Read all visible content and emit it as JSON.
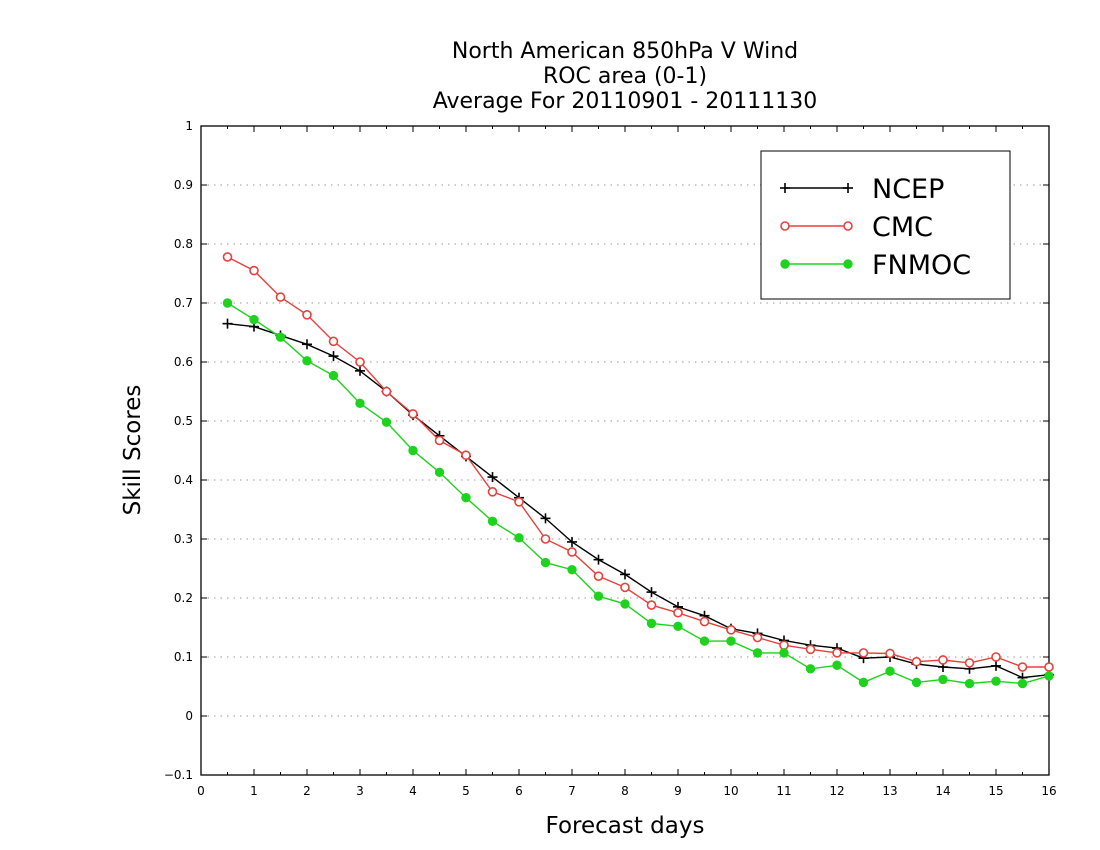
{
  "chart_data": {
    "type": "line",
    "title": [
      "North American 850hPa V Wind",
      "ROC area (0-1)",
      "Average For 20110901 - 20111130"
    ],
    "xlabel": "Forecast days",
    "ylabel": "Skill Scores",
    "xlim": [
      0,
      16
    ],
    "ylim": [
      -0.1,
      1
    ],
    "x_ticks": [
      "0",
      "1",
      "2",
      "3",
      "4",
      "5",
      "6",
      "7",
      "8",
      "9",
      "10",
      "11",
      "12",
      "13",
      "14",
      "15",
      "16"
    ],
    "y_ticks": [
      "−0.1",
      "0",
      "0.1",
      "0.2",
      "0.3",
      "0.4",
      "0.5",
      "0.6",
      "0.7",
      "0.8",
      "0.9",
      "1"
    ],
    "grid": "horizontal dotted",
    "legend_position": "top-right",
    "x": [
      0.5,
      1,
      1.5,
      2,
      2.5,
      3,
      3.5,
      4,
      4.5,
      5,
      5.5,
      6,
      6.5,
      7,
      7.5,
      8,
      8.5,
      9,
      9.5,
      10,
      10.5,
      11,
      11.5,
      12,
      12.5,
      13,
      13.5,
      14,
      14.5,
      15,
      15.5,
      16
    ],
    "series": [
      {
        "name": "NCEP",
        "color": "#000000",
        "marker": "plus",
        "values": [
          0.665,
          0.66,
          0.645,
          0.63,
          0.61,
          0.585,
          0.55,
          0.51,
          0.475,
          0.44,
          0.405,
          0.37,
          0.335,
          0.295,
          0.265,
          0.24,
          0.21,
          0.185,
          0.17,
          0.148,
          0.14,
          0.128,
          0.12,
          0.115,
          0.098,
          0.1,
          0.088,
          0.083,
          0.08,
          0.085,
          0.065,
          0.07
        ]
      },
      {
        "name": "CMC",
        "color": "#e8403c",
        "marker": "open-circle",
        "values": [
          0.778,
          0.755,
          0.71,
          0.68,
          0.635,
          0.6,
          0.55,
          0.512,
          0.467,
          0.442,
          0.38,
          0.363,
          0.3,
          0.278,
          0.237,
          0.218,
          0.188,
          0.175,
          0.16,
          0.146,
          0.133,
          0.12,
          0.113,
          0.107,
          0.107,
          0.106,
          0.092,
          0.095,
          0.09,
          0.1,
          0.083,
          0.083
        ]
      },
      {
        "name": "FNMOC",
        "color": "#1ed21e",
        "marker": "filled-circle",
        "values": [
          0.7,
          0.672,
          0.642,
          0.602,
          0.577,
          0.53,
          0.498,
          0.45,
          0.413,
          0.37,
          0.33,
          0.302,
          0.26,
          0.248,
          0.203,
          0.19,
          0.157,
          0.152,
          0.127,
          0.127,
          0.107,
          0.107,
          0.08,
          0.086,
          0.057,
          0.076,
          0.057,
          0.062,
          0.055,
          0.059,
          0.055,
          0.068
        ]
      }
    ]
  }
}
